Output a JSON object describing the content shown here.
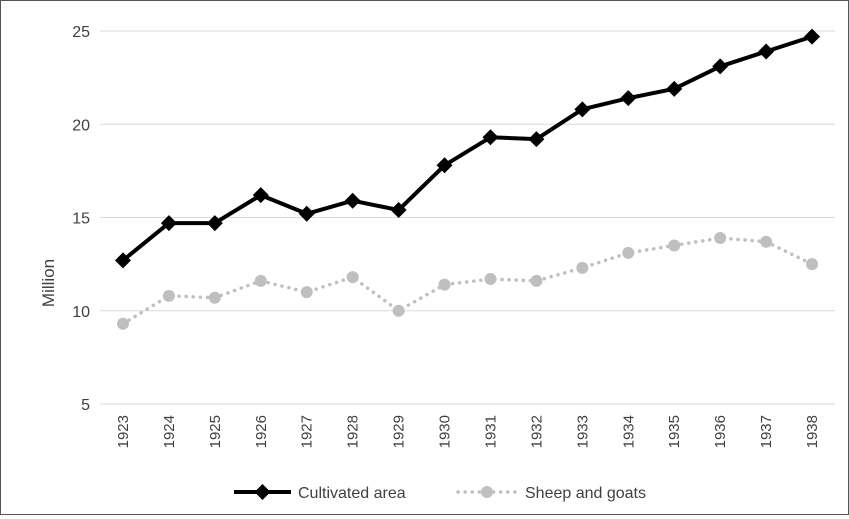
{
  "chart_data": {
    "type": "line",
    "title": "",
    "xlabel": "",
    "ylabel": "Million",
    "ylim": [
      5,
      25
    ],
    "yticks": [
      5,
      10,
      15,
      20,
      25
    ],
    "grid": true,
    "legend_position": "bottom",
    "categories": [
      "1923",
      "1924",
      "1925",
      "1926",
      "1927",
      "1928",
      "1929",
      "1930",
      "1931",
      "1932",
      "1933",
      "1934",
      "1935",
      "1936",
      "1937",
      "1938"
    ],
    "series": [
      {
        "name": "Cultivated area",
        "color": "#000000",
        "line_style": "solid",
        "marker": "diamond",
        "values": [
          12.7,
          14.7,
          14.7,
          16.2,
          15.2,
          15.9,
          15.4,
          17.8,
          19.3,
          19.2,
          20.8,
          21.4,
          21.9,
          23.1,
          23.9,
          24.7
        ]
      },
      {
        "name": "Sheep and goats",
        "color": "#bfbfbf",
        "line_style": "dotted",
        "marker": "circle",
        "values": [
          9.3,
          10.8,
          10.7,
          11.6,
          11.0,
          11.8,
          10.0,
          11.4,
          11.7,
          11.6,
          12.3,
          13.1,
          13.5,
          13.9,
          13.7,
          12.5
        ]
      }
    ]
  }
}
